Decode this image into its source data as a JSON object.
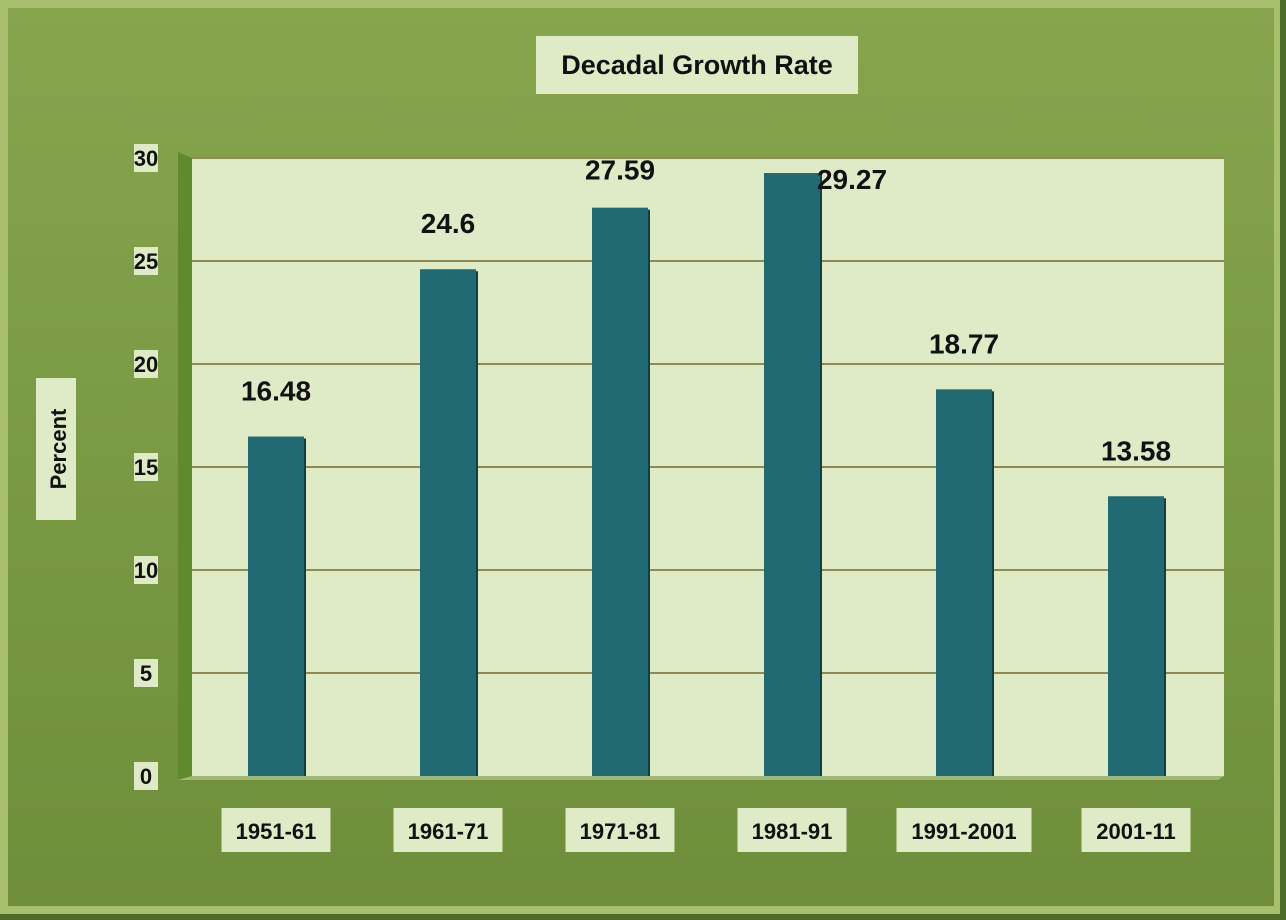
{
  "chart_data": {
    "type": "bar",
    "title": "Decadal Growth Rate",
    "ylabel": "Percent",
    "xlabel": "",
    "categories": [
      "1951-61",
      "1961-71",
      "1971-81",
      "1981-91",
      "1991-2001",
      "2001-11"
    ],
    "values": [
      16.48,
      24.6,
      27.59,
      29.27,
      18.77,
      13.58
    ],
    "data_labels": [
      "16.48",
      "24.6",
      "27.59",
      "29.27",
      "18.77",
      "13.58"
    ],
    "ylim": [
      0,
      30
    ],
    "yticks": [
      0,
      5,
      10,
      15,
      20,
      25,
      30
    ],
    "grid": true,
    "legend": "none",
    "colors": {
      "bar": "#216a72",
      "bar_shadow": "#123f44",
      "frame": "#7d9c45",
      "frame_dark": "#4d6a28",
      "plot_bg": "#dfeac7",
      "label_bg": "#dfeac7",
      "gridline": "#8f8a55"
    }
  }
}
